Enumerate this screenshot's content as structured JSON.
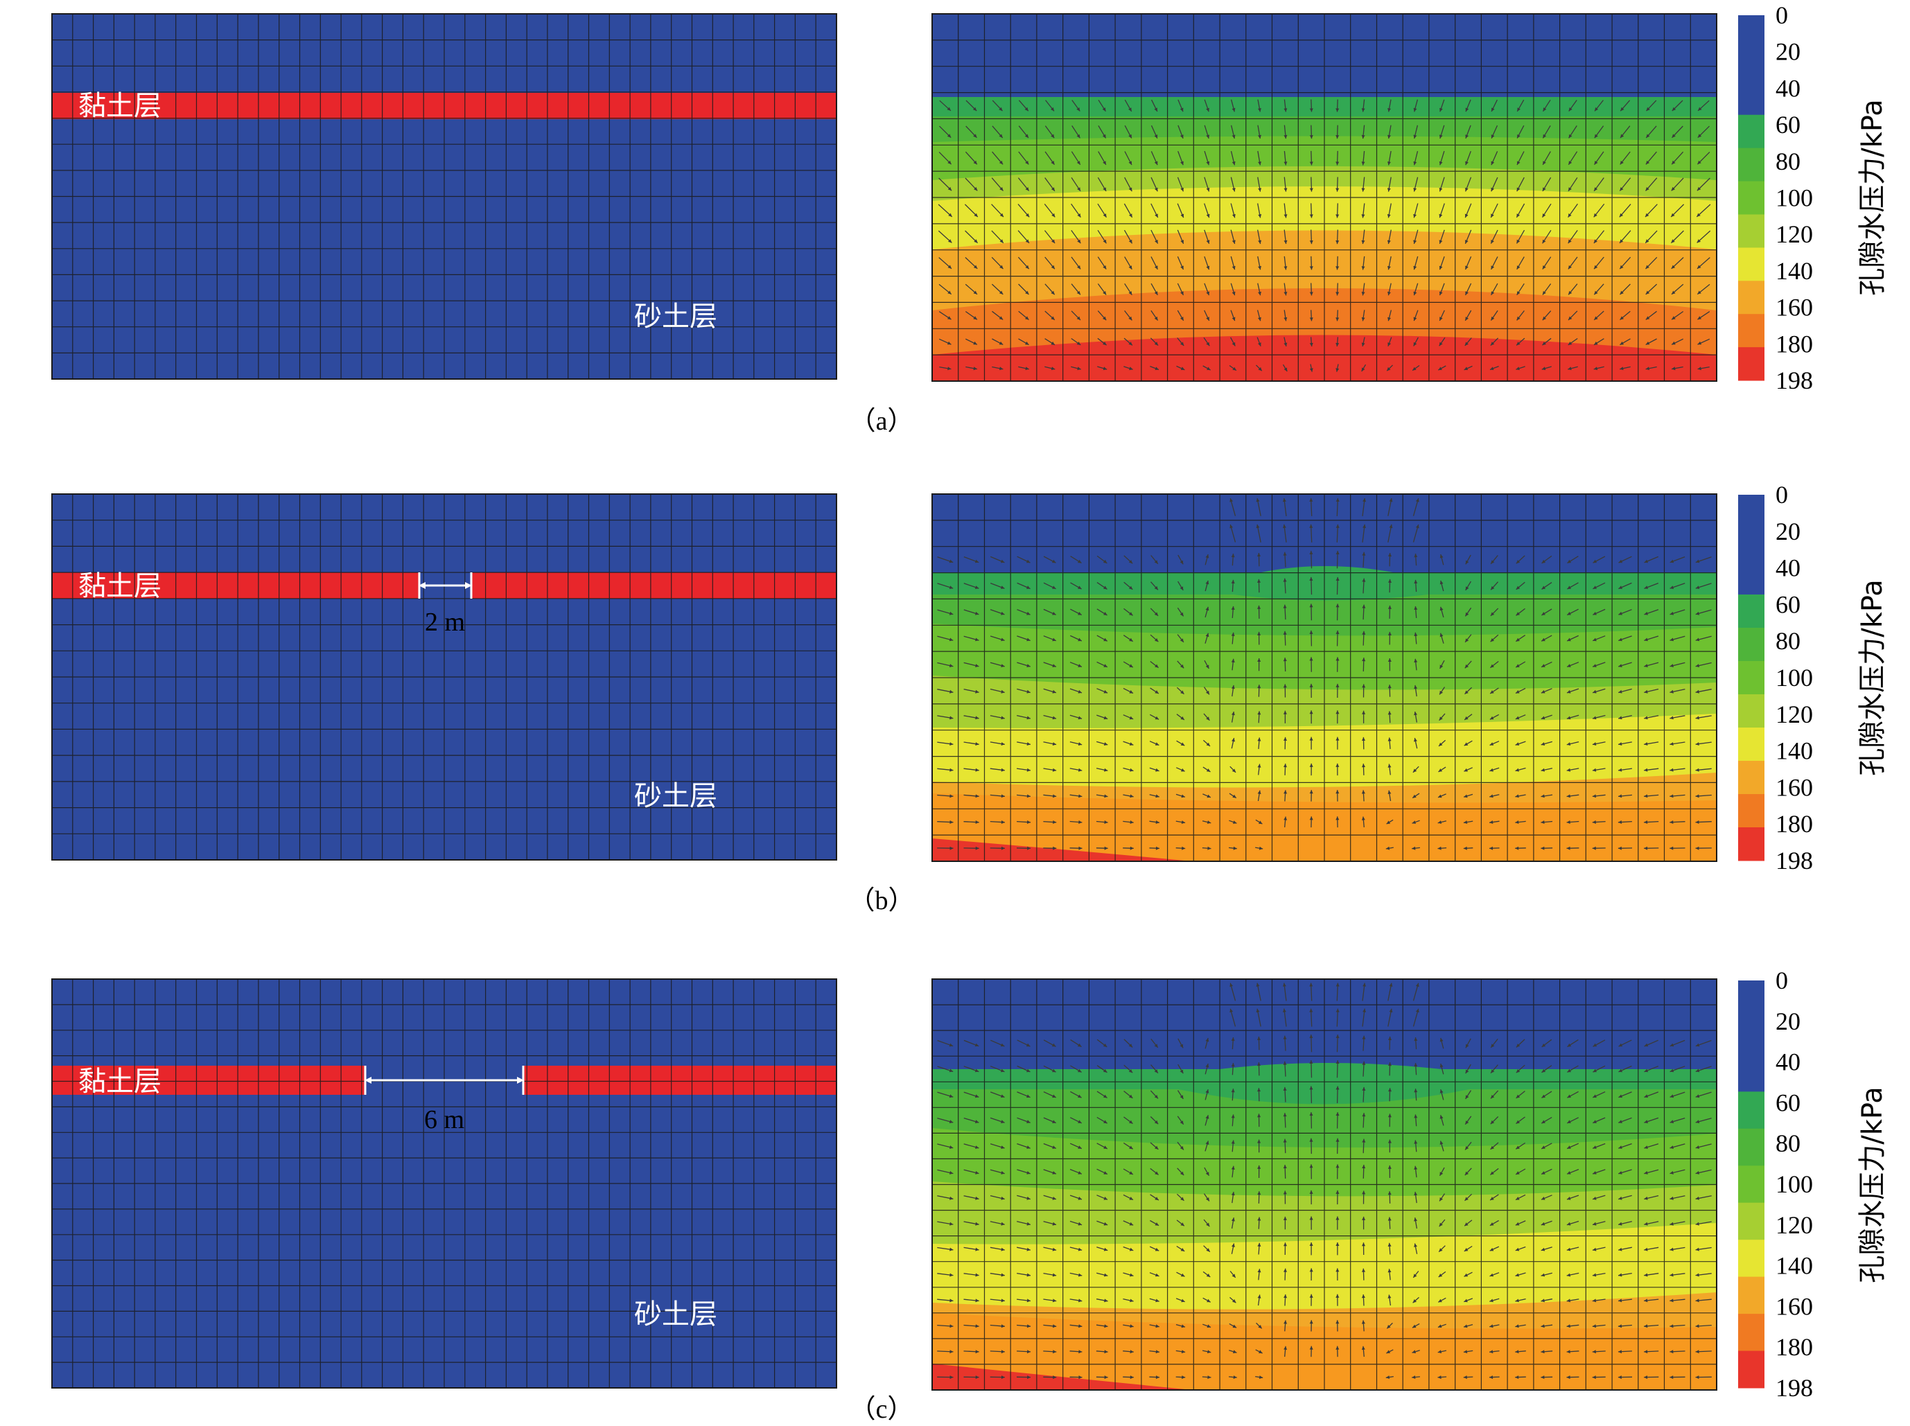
{
  "colorbar": {
    "label": "孔隙水压力/kPa",
    "ticks": [
      "0",
      "20",
      "40",
      "60",
      "80",
      "100",
      "120",
      "140",
      "160",
      "180",
      "198"
    ],
    "colors": [
      "#2e4a9e",
      "#2e4a9e",
      "#2e4a9e",
      "#32a853",
      "#4fb43a",
      "#6ec130",
      "#a6cf32",
      "#e6e532",
      "#f2a829",
      "#f07a22",
      "#e8352b"
    ]
  },
  "colors": {
    "mesh_blue": "#2e4a9e",
    "clay_red": "#e8262b",
    "grid_line": "#1a1a1a"
  },
  "labels": {
    "clay": "黏土层",
    "sand": "砂土层"
  },
  "panels": [
    {
      "caption": "（a）",
      "gap_label": "",
      "clay_gap_m": 0
    },
    {
      "caption": "（b）",
      "gap_label": "2 m",
      "clay_gap_m": 2
    },
    {
      "caption": "（c）",
      "gap_label": "6 m",
      "clay_gap_m": 6
    }
  ]
}
